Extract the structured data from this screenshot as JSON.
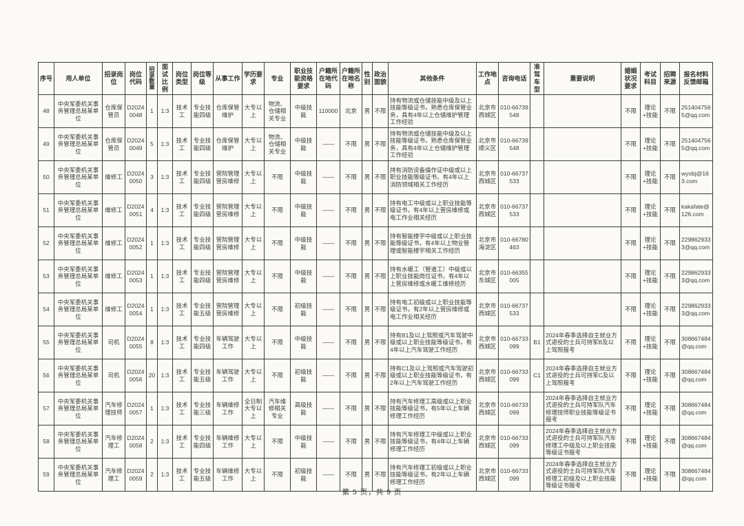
{
  "page": {
    "footer": "第 5 页，共 9 页"
  },
  "table": {
    "headers": [
      "序号",
      "用人单位",
      "招录岗位",
      "岗位代码",
      "招录数量",
      "面试比例",
      "岗位类型",
      "岗位等级",
      "从事工作",
      "学历要求",
      "专业",
      "职业技能资格要求",
      "户籍所在地代码",
      "户籍所在地名称",
      "性别",
      "政治面貌",
      "其他条件",
      "工作地点",
      "咨询电话",
      "准驾车型",
      "重要说明",
      "婚姻状况要求",
      "考试科目",
      "招聘来源",
      "报名材料反馈邮箱"
    ],
    "rows": [
      [
        "48",
        "中央军委机关事务管理总局某单位",
        "仓库保管员",
        "D20240048",
        "1",
        "1:3",
        "技术工",
        "专业技能四级",
        "仓库保管维护",
        "大专以上",
        "物流、仓储相关专业",
        "中级技能",
        "110000",
        "北京",
        "男",
        "不限",
        "持有物流或仓储技能中级及以上技能等级证书，熟悉仓库保管业务，具有4年以上仓储维护管理工作经验",
        "北京市西城区",
        "010-66739548",
        "",
        "",
        "不限",
        "理论+技能",
        "不限",
        "2514047565@qq.com"
      ],
      [
        "49",
        "中央军委机关事务管理总局某单位",
        "仓库保管员",
        "D20240049",
        "5",
        "1:3",
        "技术工",
        "专业技能四级",
        "仓库保管维护",
        "大专以上",
        "物流、仓储相关专业",
        "中级技能",
        "——",
        "不限",
        "男",
        "不限",
        "持有物流或仓储技能中级及以上技能等级证书，熟悉仓库保管业务，具有4年以上仓储维护管理工作经验",
        "北京市顺义区",
        "010-66739548",
        "",
        "",
        "不限",
        "理论+技能",
        "不限",
        "2514047565@qq.com"
      ],
      [
        "50",
        "中央军委机关事务管理总局某单位",
        "维修工",
        "D20240050",
        "3",
        "1:3",
        "技术工",
        "专业技能四级",
        "营院管理营房维修",
        "大专以上",
        "不限",
        "中级技能",
        "——",
        "不限",
        "男",
        "不限",
        "持有消防设备操作证中级或以上职业技能等级证书，有4年以上消防领域相关工作经历",
        "北京市西城区",
        "010-66737533",
        "",
        "",
        "不限",
        "理论+技能",
        "不限",
        "wyobj@163.com"
      ],
      [
        "51",
        "中央军委机关事务管理总局某单位",
        "维修工",
        "D20240051",
        "4",
        "1:3",
        "技术工",
        "专业技能四级",
        "营院管理营房维修",
        "大专以上",
        "不限",
        "中级技能",
        "——",
        "不限",
        "男",
        "不限",
        "持有电工中级或以上职业技能等级证书，有4年以上营房维修或电工作业相关经历",
        "北京市西城区",
        "010-66737533",
        "",
        "",
        "不限",
        "理论+技能",
        "不限",
        "kakafate@126.com"
      ],
      [
        "52",
        "中央军委机关事务管理总局某单位",
        "维修工",
        "D20240052",
        "1",
        "1:3",
        "技术工",
        "专业技能四级",
        "营院管理营房维修",
        "大专以上",
        "不限",
        "中级技能",
        "——",
        "不限",
        "男",
        "不限",
        "持有智能楼宇中级或以上职业技能等级证书，有4年以上物业管理或智能楼宇相关工作经历",
        "北京市海淀区",
        "010-66780463",
        "",
        "",
        "不限",
        "理论+技能",
        "不限",
        "2298629333@qq.com"
      ],
      [
        "53",
        "中央军委机关事务管理总局某单位",
        "维修工",
        "D20240053",
        "1",
        "1:3",
        "技术工",
        "专业技能四级",
        "营院管理营房维修",
        "大专以上",
        "不限",
        "中级技能",
        "——",
        "不限",
        "男",
        "不限",
        "持有水暖工（管道工）中级或以上职业技能岗位证书，有4年以上营房维修或水暖工维修经历",
        "北京市东城区",
        "010-66355005",
        "",
        "",
        "不限",
        "理论+技能",
        "不限",
        "2298629333@qq.com"
      ],
      [
        "54",
        "中央军委机关事务管理总局某单位",
        "维修工",
        "D20240054",
        "1",
        "1:3",
        "技术工",
        "专业技能五级",
        "营院管理营房维修",
        "大专以上",
        "不限",
        "初级技能",
        "——",
        "不限",
        "男",
        "不限",
        "持有电工初级或以上职业技能等级证书，有2年以上营房维修或电工作业相关经历",
        "北京市西城区",
        "010-66737533",
        "",
        "",
        "不限",
        "理论+技能",
        "不限",
        "2298629333@qq.com"
      ],
      [
        "55",
        "中央军委机关事务管理总局某单位",
        "司机",
        "D20240055",
        "8",
        "1:3",
        "技术工",
        "专业技能四级",
        "车辆驾驶工作",
        "大专以上",
        "不限",
        "中级技能",
        "——",
        "不限",
        "男",
        "不限",
        "持有B1及以上驾照或汽车驾驶中级或以上职业技能等级证书，有4年以上汽车驾驶工作经历",
        "北京市西城区",
        "010-66733099",
        "B1",
        "2024年春季选择自主就业方式退役的士兵可持军B及以上驾照报考",
        "不限",
        "理论+技能",
        "不限",
        "308667484@qq.com"
      ],
      [
        "56",
        "中央军委机关事务管理总局某单位",
        "司机",
        "D20240056",
        "20",
        "1:3",
        "技术工",
        "专业技能五级",
        "车辆驾驶工作",
        "大专以上",
        "不限",
        "初级技能",
        "——",
        "不限",
        "男",
        "不限",
        "持有C1及以上驾照或汽车驾驶初级或以上职业技能等级证书，有2年以上汽车驾驶工作经历",
        "北京市西城区",
        "010-66733099",
        "C1",
        "2024年春季选择自主就业方式退役的士兵可持军C及以上驾照报考",
        "不限",
        "理论+技能",
        "不限",
        "308667484@qq.com"
      ],
      [
        "57",
        "中央军委机关事务管理总局某单位",
        "汽车修理技师",
        "D20240057",
        "1",
        "1:3",
        "技术工",
        "专业技能三级",
        "车辆维修工作",
        "全日制大专以上",
        "汽车维修相关专业",
        "高级技能",
        "——",
        "不限",
        "男",
        "不限",
        "持有汽车修理工高级或以上职业技能等级证书，有5年以上车辆修理工作经历",
        "北京市西城区",
        "010-66733099",
        "",
        "2024年春季选择自主就业方式退役的士兵可持军队汽车修理技师职业技能等级证书报考",
        "不限",
        "理论+技能",
        "不限",
        "308667484@qq.com"
      ],
      [
        "58",
        "中央军委机关事务管理总局某单位",
        "汽车修理工",
        "D20240058",
        "2",
        "1:3",
        "技术工",
        "专业技能四级",
        "车辆维修工作",
        "大专以上",
        "不限",
        "中级技能",
        "——",
        "不限",
        "男",
        "不限",
        "持有汽车修理工中级或以上职业技能等级证书，有4年以上车辆修理工作经历",
        "北京市西城区",
        "010-66733099",
        "",
        "2024年春季选择自主就业方式退役的士兵可持军队汽车修理工中级及以上职业技能等级证书报考",
        "不限",
        "理论+技能",
        "不限",
        "308667484@qq.com"
      ],
      [
        "59",
        "中央军委机关事务管理总局某单位",
        "汽车修理工",
        "D20240059",
        "2",
        "1:3",
        "技术工",
        "专业技能五级",
        "车辆维修工作",
        "大专以上",
        "不限",
        "初级技能",
        "——",
        "不限",
        "男",
        "不限",
        "持有汽车修理工初级或以上职业技能等级证书，有2年以上车辆修理工作经历",
        "北京市西城区",
        "010-66733099",
        "",
        "2024年春季选择自主就业方式退役的士兵可持军队汽车修理工初级及以上职业技能等级证书报考",
        "不限",
        "理论+技能",
        "不限",
        "308667484@qq.com"
      ]
    ]
  }
}
